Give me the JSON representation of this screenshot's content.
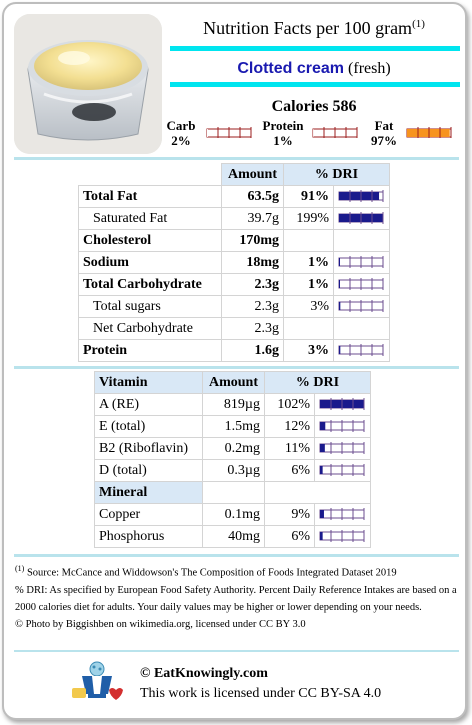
{
  "header": {
    "title": "Nutrition Facts per 100 gram",
    "title_sup": "(1)",
    "food_name": "Clotted cream",
    "food_qualifier": "(fresh)",
    "calories": "Calories 586",
    "photo_icon": "clotted-cream-photo"
  },
  "macros": [
    {
      "label": "Carb",
      "value": "2%",
      "fraction": 0.02,
      "color": "#ffffff"
    },
    {
      "label": "Protein",
      "value": "1%",
      "fraction": 0.01,
      "color": "#ffffff"
    },
    {
      "label": "Fat",
      "value": "97%",
      "fraction": 0.97,
      "color": "#f7931e"
    }
  ],
  "nutrients": {
    "headers": [
      "Amount",
      "% DRI"
    ],
    "rows": [
      {
        "name": "Total Fat",
        "amount": "63.5g",
        "dri": "91%",
        "dri_fraction": 0.91,
        "bold": true,
        "indent": false
      },
      {
        "name": "Saturated Fat",
        "amount": "39.7g",
        "dri": "199%",
        "dri_fraction": 1.0,
        "bold": false,
        "indent": true
      },
      {
        "name": "Cholesterol",
        "amount": "170mg",
        "dri": "",
        "dri_fraction": null,
        "bold": true,
        "indent": false
      },
      {
        "name": "Sodium",
        "amount": "18mg",
        "dri": "1%",
        "dri_fraction": 0.01,
        "bold": true,
        "indent": false
      },
      {
        "name": "Total Carbohydrate",
        "amount": "2.3g",
        "dri": "1%",
        "dri_fraction": 0.01,
        "bold": true,
        "indent": false
      },
      {
        "name": "Total sugars",
        "amount": "2.3g",
        "dri": "3%",
        "dri_fraction": 0.03,
        "bold": false,
        "indent": true
      },
      {
        "name": "Net Carbohydrate",
        "amount": "2.3g",
        "dri": "",
        "dri_fraction": null,
        "bold": false,
        "indent": true
      },
      {
        "name": "Protein",
        "amount": "1.6g",
        "dri": "3%",
        "dri_fraction": 0.03,
        "bold": true,
        "indent": false
      }
    ]
  },
  "vitamins": {
    "headers": [
      "Vitamin",
      "Amount",
      "% DRI"
    ],
    "rows": [
      {
        "name": "A (RE)",
        "amount": "819µg",
        "dri": "102%",
        "dri_fraction": 1.0
      },
      {
        "name": "E (total)",
        "amount": "1.5mg",
        "dri": "12%",
        "dri_fraction": 0.12
      },
      {
        "name": "B2 (Riboflavin)",
        "amount": "0.2mg",
        "dri": "11%",
        "dri_fraction": 0.11
      },
      {
        "name": "D (total)",
        "amount": "0.3µg",
        "dri": "6%",
        "dri_fraction": 0.06
      }
    ],
    "mineral_header": "Mineral",
    "minerals": [
      {
        "name": "Copper",
        "amount": "0.1mg",
        "dri": "9%",
        "dri_fraction": 0.09
      },
      {
        "name": "Phosphorus",
        "amount": "40mg",
        "dri": "6%",
        "dri_fraction": 0.06
      }
    ]
  },
  "footer": {
    "source_sup": "(1)",
    "source": " Source: McCance and Widdowson's The Composition of Foods Integrated Dataset 2019",
    "dri_note": "% DRI: As specified by European Food Safety Authority. Percent Daily Reference Intakes are based on a 2000 calories diet for adults. Your daily values may be higher or lower depending on your needs.",
    "photo_credit": "© Photo by Biggishben on wikimedia.org, licensed under CC BY 3.0",
    "site": "© EatKnowingly.com",
    "license": "This work is licensed under CC BY-SA 4.0",
    "logo_icon": "eatknowingly-logo"
  },
  "colors": {
    "accent_cyan": "#00e5ef",
    "dri_bar": "#1a1a8c",
    "macro_bar_border": "#9b1c1c",
    "header_fill": "#d9e8f6"
  }
}
